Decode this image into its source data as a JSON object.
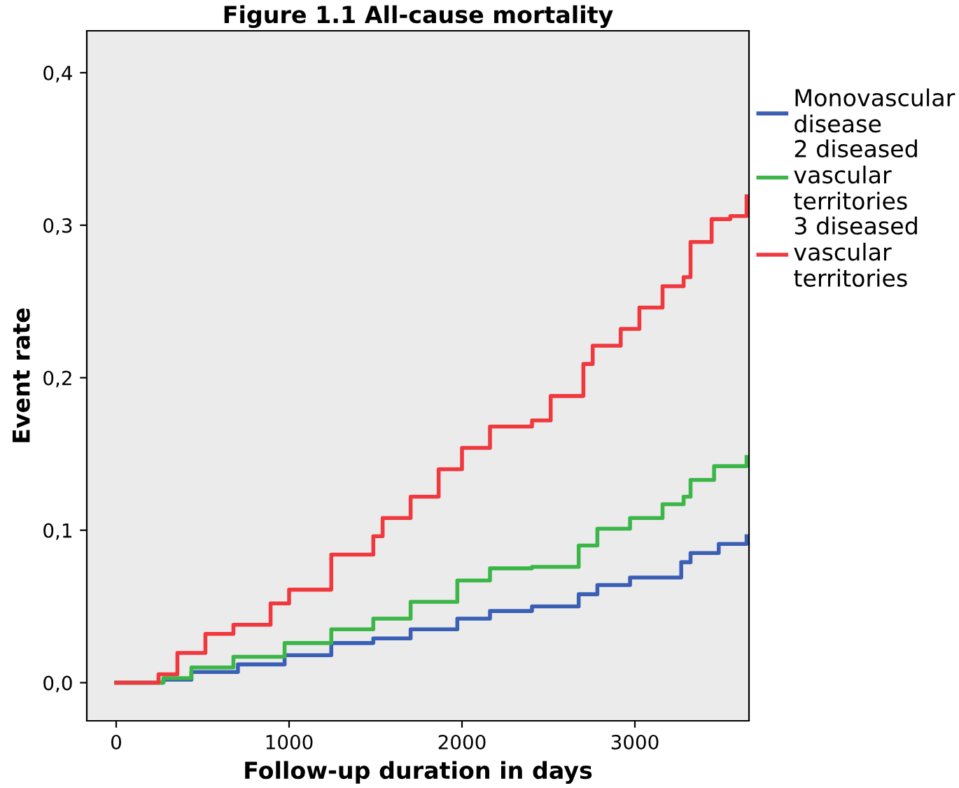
{
  "chart_data": {
    "type": "step",
    "title": "Figure 1.1 All-cause mortality",
    "xlabel": "Follow-up duration in days",
    "ylabel": "Event rate",
    "xlim": [
      -170,
      3660
    ],
    "ylim": [
      -0.025,
      0.4275
    ],
    "xticks": [
      0,
      1000,
      2000,
      3000
    ],
    "yticks": [
      {
        "value": 0,
        "label": "0,0"
      },
      {
        "value": 0.1,
        "label": "0,1"
      },
      {
        "value": 0.2,
        "label": "0,2"
      },
      {
        "value": 0.3,
        "label": "0,3"
      },
      {
        "value": 0.4,
        "label": "0,4"
      }
    ],
    "grid": false,
    "legend": "top right",
    "line_style": "solid",
    "marker": "none",
    "series": [
      {
        "name": "Monovascular disease",
        "color": "#3a5fb5",
        "x": [
          0,
          273,
          435,
          704,
          974,
          1244,
          1487,
          1703,
          1973,
          2162,
          2405,
          2675,
          2783,
          2972,
          3268,
          3322,
          3485,
          3646
        ],
        "values": [
          0,
          0.002,
          0.007,
          0.012,
          0.018,
          0.026,
          0.029,
          0.035,
          0.042,
          0.047,
          0.05,
          0.058,
          0.064,
          0.069,
          0.079,
          0.085,
          0.091,
          0.096
        ]
      },
      {
        "name": "2 diseased vascular territories",
        "color": "#3cb648",
        "x": [
          0,
          273,
          435,
          678,
          974,
          1244,
          1487,
          1703,
          1973,
          2162,
          2405,
          2675,
          2783,
          2972,
          3160,
          3282,
          3322,
          3458,
          3646
        ],
        "values": [
          0,
          0.003,
          0.01,
          0.017,
          0.026,
          0.035,
          0.042,
          0.053,
          0.067,
          0.075,
          0.076,
          0.09,
          0.101,
          0.108,
          0.117,
          0.122,
          0.133,
          0.142,
          0.148
        ]
      },
      {
        "name": "3 diseased vascular territories",
        "color": "#f0383f",
        "x": [
          0,
          245,
          354,
          516,
          678,
          893,
          1000,
          1244,
          1487,
          1541,
          1703,
          1865,
          2000,
          2162,
          2405,
          2513,
          2702,
          2756,
          2918,
          3026,
          3160,
          3282,
          3322,
          3444,
          3552,
          3646
        ],
        "values": [
          0,
          0.0055,
          0.0195,
          0.032,
          0.038,
          0.052,
          0.061,
          0.084,
          0.096,
          0.108,
          0.122,
          0.14,
          0.154,
          0.168,
          0.172,
          0.188,
          0.209,
          0.221,
          0.232,
          0.246,
          0.26,
          0.266,
          0.289,
          0.304,
          0.306,
          0.319
        ]
      }
    ]
  }
}
